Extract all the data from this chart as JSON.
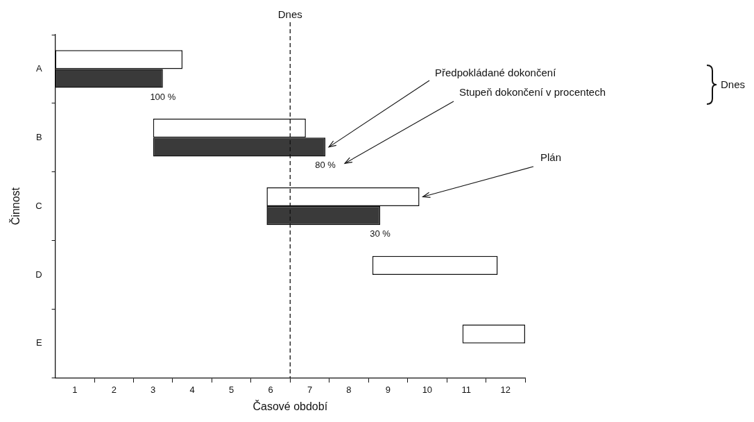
{
  "chart_data": {
    "type": "bar",
    "orientation": "horizontal",
    "xlabel": "Časové období",
    "ylabel": "Činnost",
    "categories": [
      "A",
      "B",
      "C",
      "D",
      "E"
    ],
    "series": [
      {
        "color": "#ffffff",
        "base": [
          0,
          2.5,
          5.4,
          8.1,
          10.4
        ],
        "values": [
          3.25,
          3.9,
          3.9,
          3.2,
          1.6
        ]
      },
      {
        "color": "#3a3a3a",
        "base": [
          0,
          2.5,
          5.4,
          null,
          null
        ],
        "values": [
          2.75,
          4.4,
          2.9,
          null,
          null
        ]
      }
    ],
    "xlim": [
      0,
      12
    ],
    "xticks": [
      {
        "value": 0.5,
        "label": "1"
      },
      {
        "value": 1,
        "label": null
      },
      {
        "value": 1.5,
        "label": "2"
      },
      {
        "value": 2,
        "label": null
      },
      {
        "value": 2.5,
        "label": "3"
      },
      {
        "value": 3,
        "label": null
      },
      {
        "value": 3.5,
        "label": "4"
      },
      {
        "value": 4,
        "label": null
      },
      {
        "value": 4.5,
        "label": "5"
      },
      {
        "value": 5,
        "label": null
      },
      {
        "value": 5.5,
        "label": "6"
      },
      {
        "value": 6,
        "label": null
      },
      {
        "value": 6.5,
        "label": "7"
      },
      {
        "value": 7,
        "label": null
      },
      {
        "value": 7.5,
        "label": "8"
      },
      {
        "value": 8,
        "label": null
      },
      {
        "value": 8.5,
        "label": "9"
      },
      {
        "value": 9,
        "label": null
      },
      {
        "value": 9.5,
        "label": "10"
      },
      {
        "value": 10,
        "label": null
      },
      {
        "value": 10.5,
        "label": "11"
      },
      {
        "value": 11,
        "label": null
      },
      {
        "value": 11.5,
        "label": "12"
      },
      {
        "value": 12,
        "label": null
      }
    ],
    "grid": false,
    "legend": false,
    "ref_lines": [
      {
        "axis": "x",
        "value": 6,
        "label": "Dnes",
        "line_style": "dashed"
      }
    ],
    "annotations": [
      "100 %",
      "80 %",
      "30 %",
      "Předpokládané dokončení",
      "Stupeň dokončení v procentech",
      "Plán",
      "Dnes"
    ]
  }
}
